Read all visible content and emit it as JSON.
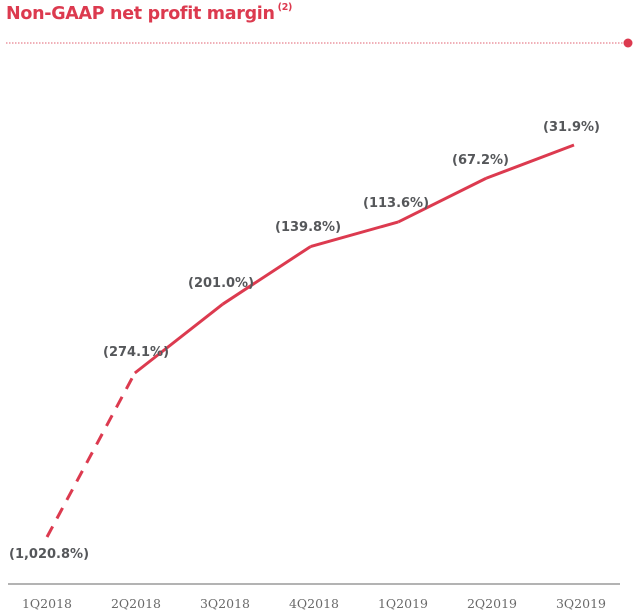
{
  "header": {
    "title": "Non-GAAP net profit margin",
    "footnote": "(2)"
  },
  "colors": {
    "accent": "#dc3a4f",
    "label": "#55575a",
    "axis": "#8a8a8a"
  },
  "chart_data": {
    "type": "line",
    "title": "Non-GAAP net profit margin (2)",
    "xlabel": "",
    "ylabel": "",
    "categories": [
      "1Q2018",
      "2Q2018",
      "3Q2018",
      "4Q2018",
      "1Q2019",
      "2Q2019",
      "3Q2019"
    ],
    "series": [
      {
        "name": "Non-GAAP net profit margin",
        "values": [
          -1020.8,
          -274.1,
          -201.0,
          -139.8,
          -113.6,
          -67.2,
          -31.9
        ],
        "labels": [
          "(1,020.8%)",
          "(274.1%)",
          "(201.0%)",
          "(139.8%)",
          "(113.6%)",
          "(67.2%)",
          "(31.9%)"
        ],
        "dashed_segments": [
          [
            0,
            1
          ]
        ]
      }
    ],
    "grid": false,
    "legend": "none",
    "y_axis_visible": false,
    "y_scale": "non-linear (compressed)"
  }
}
